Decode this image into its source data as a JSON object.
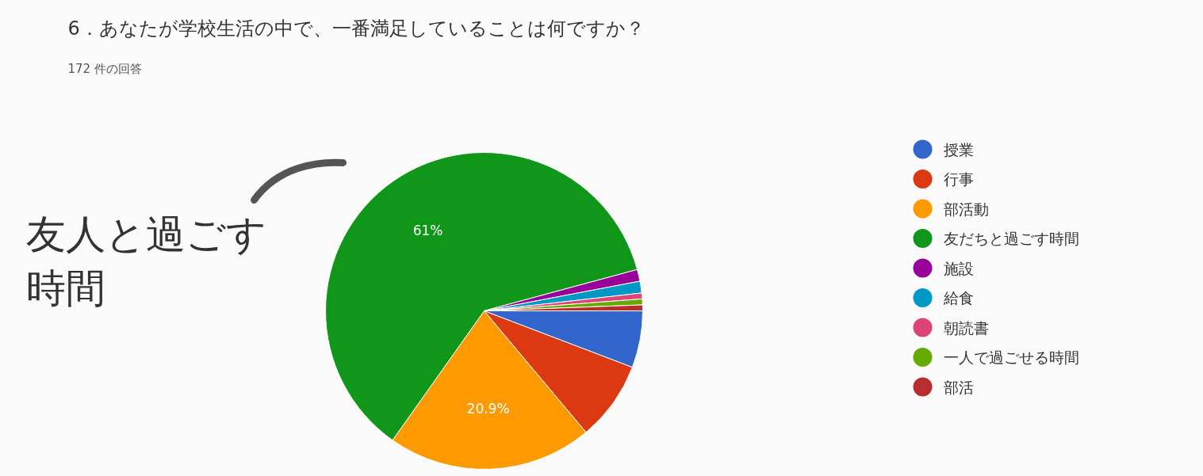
{
  "chart_data": {
    "type": "pie",
    "title": "6．あなたが学校生活の中で、一番満足していることは何ですか？",
    "subtitle": "172 件の回答",
    "categories": [
      "授業",
      "行事",
      "部活動",
      "友だちと過ごす時間",
      "施設",
      "給食",
      "朝読書",
      "一人で過ごせる時間",
      "部活"
    ],
    "values": [
      5.8,
      8.1,
      20.9,
      61.0,
      1.2,
      1.2,
      0.6,
      0.6,
      0.6
    ],
    "colors": [
      "#3366cc",
      "#dc3912",
      "#ff9900",
      "#109618",
      "#990099",
      "#0099c6",
      "#dd4477",
      "#66aa00",
      "#b82e2e"
    ],
    "value_labels": [
      null,
      null,
      "20.9%",
      "61%",
      null,
      null,
      null,
      null,
      null
    ],
    "annotations": [
      "友人と過ごす",
      "時間"
    ],
    "legend": "right"
  }
}
